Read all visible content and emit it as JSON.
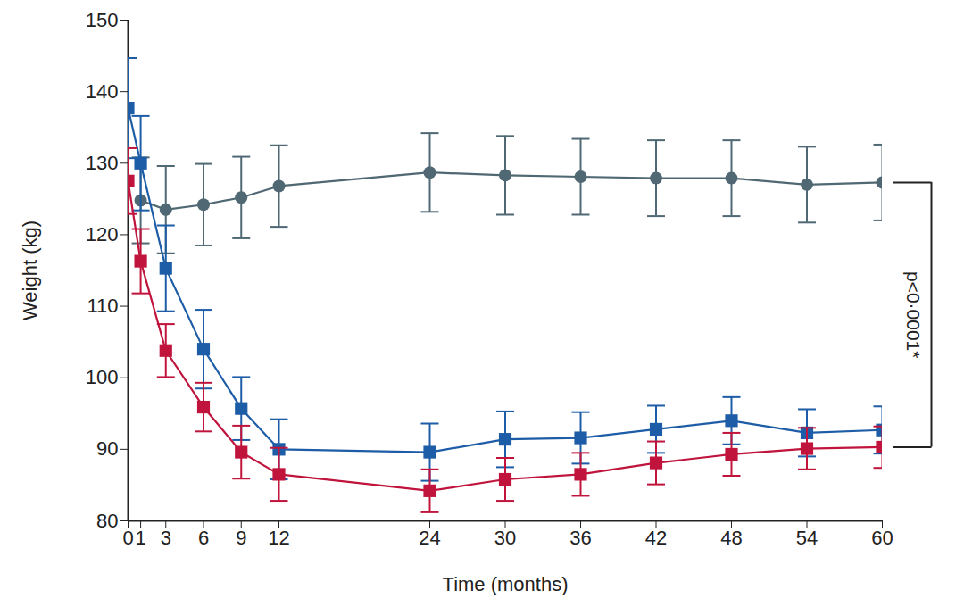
{
  "chart_data": {
    "type": "line",
    "x_label": "Time (months)",
    "y_label": "Weight (kg)",
    "x": [
      0,
      1,
      3,
      6,
      9,
      12,
      24,
      30,
      36,
      42,
      48,
      54,
      60
    ],
    "xlim": [
      0,
      60
    ],
    "xticks": [
      0,
      1,
      3,
      6,
      9,
      12,
      24,
      30,
      36,
      42,
      48,
      54,
      60
    ],
    "ylim": [
      80,
      150
    ],
    "yticks": [
      80,
      90,
      100,
      110,
      120,
      130,
      140,
      150
    ],
    "grid": false,
    "series": [
      {
        "color": "#4f6873",
        "marker": "circle",
        "line_style": "solid",
        "values": [
          null,
          124.8,
          123.5,
          124.2,
          125.2,
          126.8,
          128.7,
          128.3,
          128.1,
          127.9,
          127.9,
          127.0,
          127.3
        ],
        "error": [
          null,
          6.0,
          6.1,
          5.7,
          5.7,
          5.7,
          5.5,
          5.5,
          5.3,
          5.3,
          5.3,
          5.3,
          5.3
        ]
      },
      {
        "color": "#1d5ca6",
        "marker": "square",
        "line_style": "solid",
        "values": [
          137.7,
          130.0,
          115.3,
          104.0,
          95.7,
          90.0,
          89.6,
          91.4,
          91.6,
          92.8,
          94.0,
          92.3,
          92.7
        ],
        "error": [
          7.0,
          6.6,
          6.0,
          5.5,
          4.4,
          4.2,
          4.0,
          3.9,
          3.6,
          3.3,
          3.3,
          3.3,
          3.3
        ]
      },
      {
        "color": "#c0143c",
        "marker": "square",
        "line_style": "solid",
        "values": [
          127.5,
          116.3,
          103.8,
          95.9,
          89.6,
          86.5,
          84.2,
          85.8,
          86.5,
          88.1,
          89.3,
          90.1,
          90.3
        ],
        "error": [
          4.6,
          4.5,
          3.7,
          3.4,
          3.7,
          3.7,
          3.0,
          3.0,
          3.0,
          3.0,
          3.0,
          2.9,
          2.9
        ]
      }
    ],
    "annotations": [
      {
        "text": "p<0·0001*"
      }
    ]
  }
}
